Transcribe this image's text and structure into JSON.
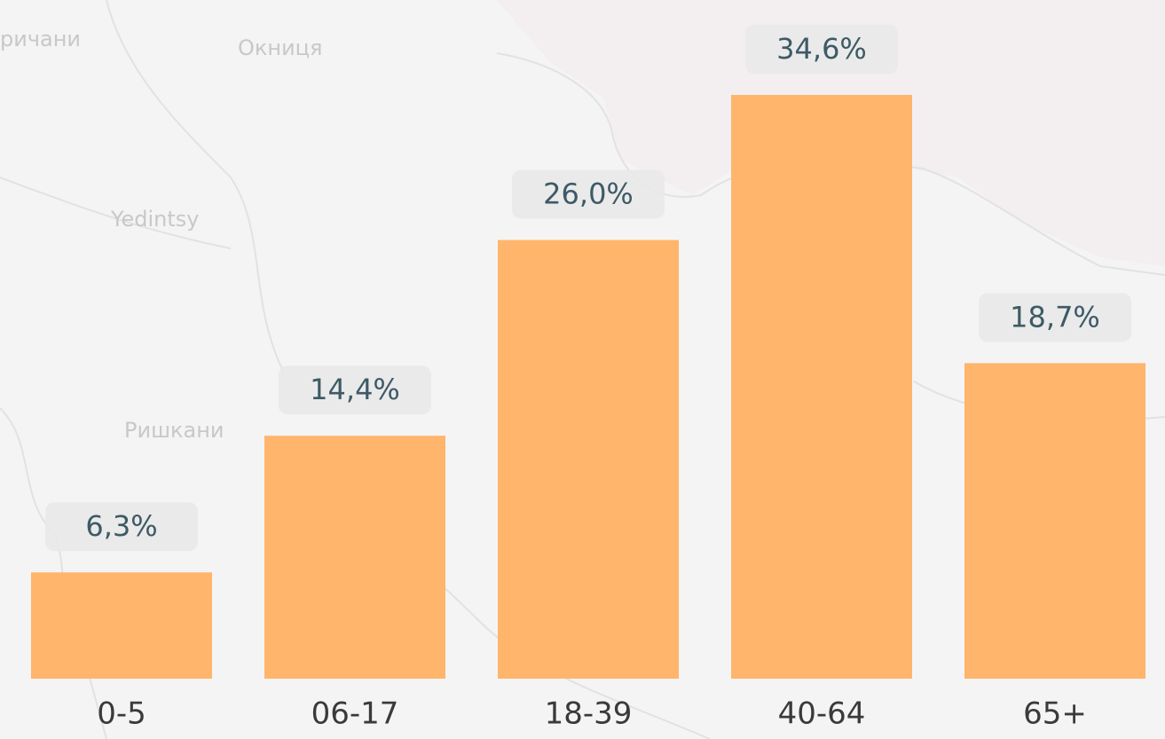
{
  "chart_data": {
    "type": "bar",
    "categories": [
      "0-5",
      "06-17",
      "18-39",
      "40-64",
      "65+"
    ],
    "values": [
      6.3,
      14.4,
      26.0,
      34.6,
      18.7
    ],
    "value_labels": [
      "6,3%",
      "14,4%",
      "26,0%",
      "34,6%",
      "18,7%"
    ],
    "color": "#ffb56b",
    "background_labels": [
      "ричани",
      "Окниця",
      "Yedintsy",
      "Ришкани"
    ]
  }
}
